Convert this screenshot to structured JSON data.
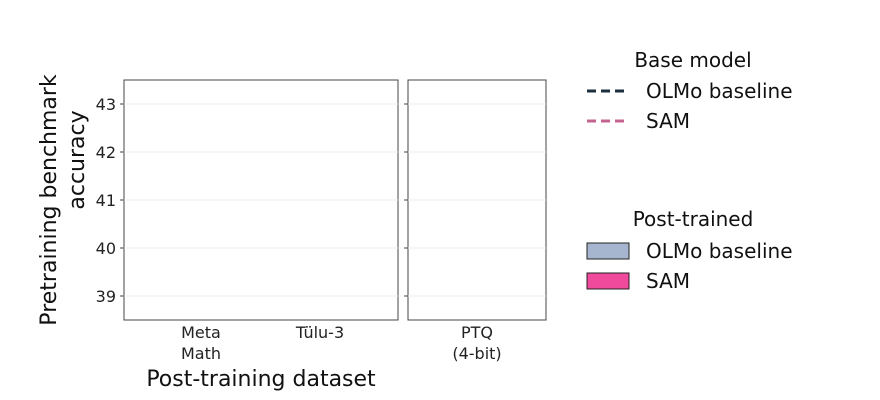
{
  "chart_data": {
    "type": "bar",
    "xlabel": "Post-training dataset",
    "ylabel_lines": [
      "Pretraining benchmark",
      "accuracy"
    ],
    "ylim": [
      38.5,
      43.5
    ],
    "yticks": [
      "39",
      "40",
      "41",
      "42",
      "43"
    ],
    "grid": true,
    "panels": [
      {
        "categories": [
          [
            "Meta",
            "Math"
          ],
          [
            "Tülu-3"
          ]
        ]
      },
      {
        "categories": [
          [
            "PTQ",
            "(4-bit)"
          ]
        ]
      }
    ],
    "series": [],
    "legend": {
      "placement": "right",
      "groups": [
        {
          "title": "Base model",
          "style": "dashed-line",
          "items": [
            {
              "label": "OLMo baseline",
              "color": "#1b2f3f"
            },
            {
              "label": "SAM",
              "color": "#c4648e"
            }
          ]
        },
        {
          "title": "Post-trained",
          "style": "patch",
          "items": [
            {
              "label": "OLMo baseline",
              "color": "#a7b6cf"
            },
            {
              "label": "SAM",
              "color": "#ef4a9b"
            }
          ]
        }
      ]
    }
  }
}
